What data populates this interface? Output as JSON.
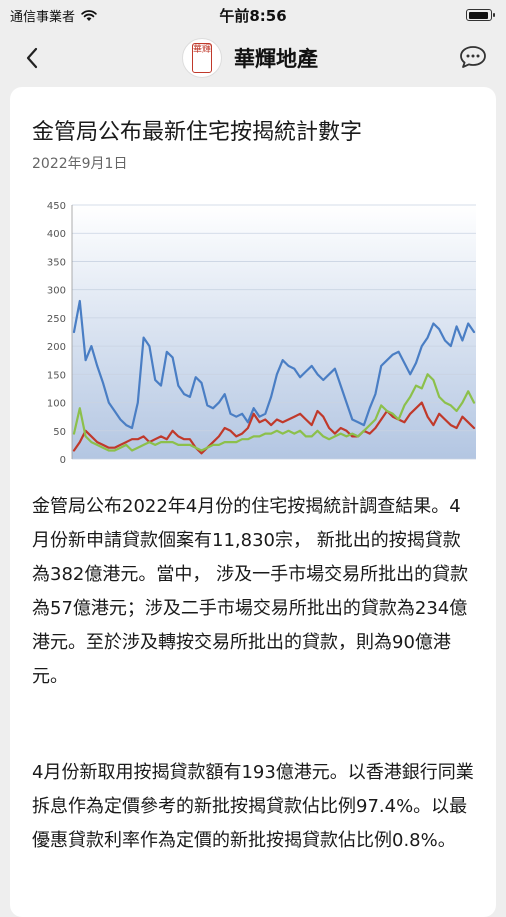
{
  "status_bar": {
    "carrier": "通信事業者",
    "time": "午前8:56",
    "battery_level": 0.95,
    "icons": [
      "wifi-icon",
      "battery-icon"
    ]
  },
  "nav": {
    "title": "華輝地產",
    "logo_text": "華輝",
    "icons": [
      "back-chevron-icon",
      "chat-bubble-icon"
    ]
  },
  "article": {
    "title": "金管局公布最新住宅按揭統計數字",
    "date": "2022年9月1日",
    "paragraphs": [
      "金管局公布2022年4月份的住宅按揭統計調查結果。4月份新申請貸款個案有11,830宗， 新批出的按揭貸款為382億港元。當中， 涉及一手市場交易所批出的貸款為57億港元；涉及二手市場交易所批出的貸款為234億港元。至於涉及轉按交易所批出的貸款，則為90億港元。",
      "4月份新取用按揭貸款額有193億港元。以香港銀行同業拆息作為定價參考的新批按揭貸款佔比例97.4%。以最優惠貸款利率作為定價的新批按揭貸款佔比例0.8%。"
    ]
  },
  "chart_data": {
    "type": "line",
    "ylim": [
      0,
      450
    ],
    "yticks": [
      "0",
      "50",
      "100",
      "150",
      "200",
      "250",
      "300",
      "350",
      "400",
      "450"
    ],
    "grid": true,
    "colors": {
      "blue": "#4a7ec4",
      "red": "#c0392b",
      "green": "#8cc04b"
    },
    "series": [
      {
        "color": "blue",
        "values": [
          225,
          280,
          175,
          200,
          165,
          135,
          100,
          85,
          70,
          60,
          55,
          100,
          215,
          200,
          140,
          130,
          190,
          180,
          130,
          115,
          110,
          145,
          135,
          95,
          90,
          100,
          115,
          80,
          75,
          80,
          65,
          90,
          75,
          80,
          110,
          150,
          175,
          165,
          160,
          145,
          155,
          165,
          150,
          140,
          150,
          160,
          130,
          100,
          70,
          65,
          60,
          90,
          115,
          165,
          175,
          185,
          190,
          170,
          150,
          170,
          200,
          215,
          240,
          230,
          210,
          200,
          235,
          210,
          240,
          225
        ]
      },
      {
        "color": "red",
        "values": [
          15,
          30,
          50,
          40,
          30,
          25,
          20,
          20,
          25,
          30,
          35,
          35,
          40,
          30,
          35,
          40,
          35,
          50,
          40,
          35,
          35,
          20,
          10,
          20,
          30,
          40,
          55,
          50,
          40,
          45,
          55,
          80,
          65,
          70,
          60,
          70,
          65,
          70,
          75,
          80,
          70,
          60,
          85,
          75,
          55,
          45,
          55,
          50,
          40,
          40,
          50,
          45,
          55,
          70,
          85,
          75,
          70,
          65,
          80,
          90,
          100,
          75,
          60,
          80,
          70,
          60,
          55,
          75,
          65,
          55
        ]
      },
      {
        "color": "green",
        "values": [
          45,
          90,
          40,
          30,
          25,
          20,
          15,
          15,
          20,
          25,
          15,
          20,
          25,
          30,
          25,
          30,
          30,
          30,
          25,
          25,
          25,
          20,
          15,
          20,
          25,
          25,
          30,
          30,
          30,
          35,
          35,
          40,
          40,
          45,
          45,
          50,
          45,
          50,
          45,
          50,
          40,
          40,
          50,
          40,
          35,
          40,
          45,
          40,
          45,
          40,
          50,
          60,
          70,
          95,
          85,
          80,
          70,
          95,
          110,
          130,
          125,
          150,
          140,
          110,
          100,
          95,
          85,
          100,
          120,
          100
        ]
      }
    ]
  }
}
